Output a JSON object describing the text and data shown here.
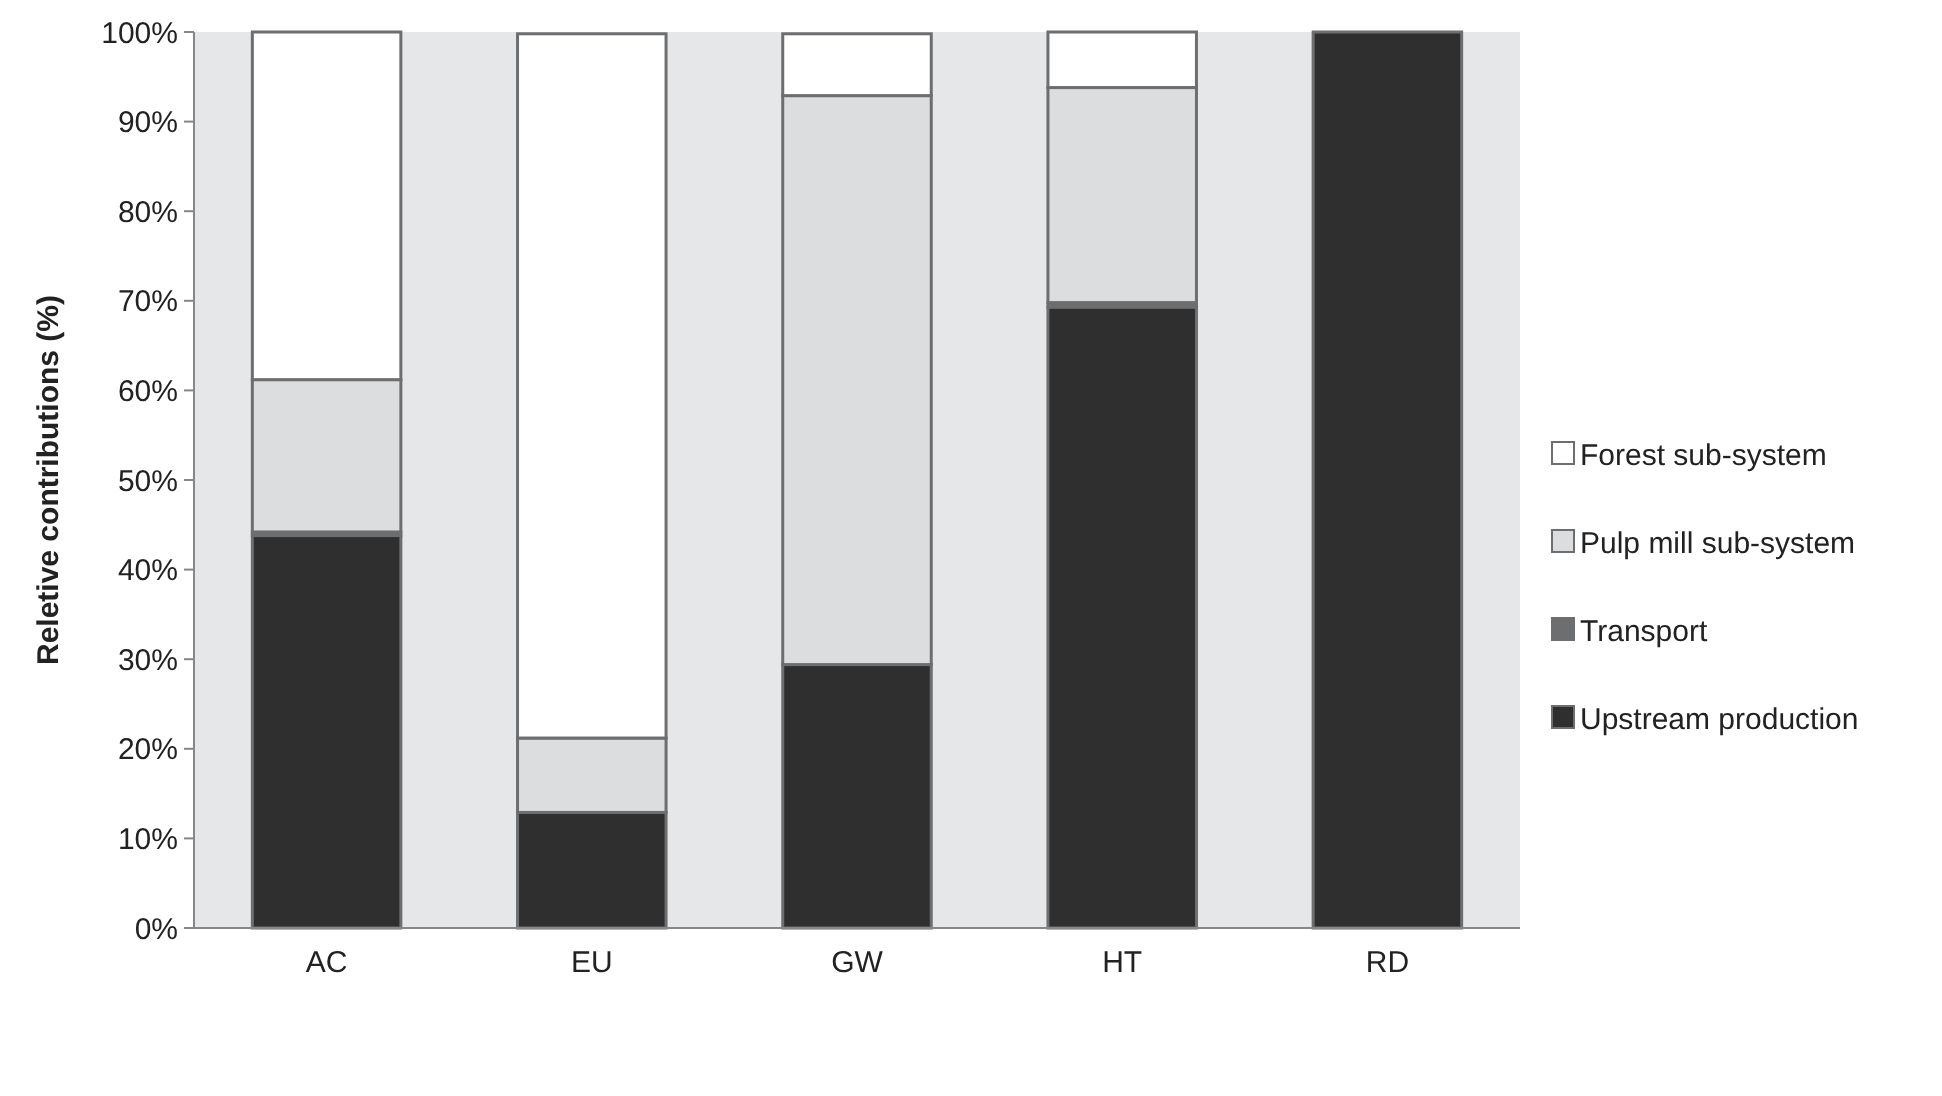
{
  "chart_data": {
    "type": "bar",
    "stacked": true,
    "ylabel": "Reletive contributions (%)",
    "categories": [
      "AC",
      "EU",
      "GW",
      "HT",
      "RD"
    ],
    "series": [
      {
        "name": "Upstream production",
        "color": "#302f30",
        "values": [
          43.8,
          12.9,
          29.4,
          69.3,
          100
        ]
      },
      {
        "name": "Transport",
        "color": "#6d6e70",
        "values": [
          0.4,
          null,
          null,
          0.5,
          0
        ]
      },
      {
        "name": "Pulp mill sub-system",
        "color": "#dcdddf",
        "values": [
          17.0,
          8.3,
          63.5,
          24.0,
          0
        ]
      },
      {
        "name": "Forest sub-system",
        "color": "#ffffff",
        "values": [
          38.8,
          78.6,
          6.9,
          6.2,
          0
        ]
      }
    ],
    "ylim": [
      0,
      100
    ],
    "yticks": [
      {
        "value": 0,
        "label": "0%"
      },
      {
        "value": 10,
        "label": "10%"
      },
      {
        "value": 20,
        "label": "20%"
      },
      {
        "value": 30,
        "label": "30%"
      },
      {
        "value": 40,
        "label": "40%"
      },
      {
        "value": 50,
        "label": "50%"
      },
      {
        "value": 60,
        "label": "60%"
      },
      {
        "value": 70,
        "label": "70%"
      },
      {
        "value": 80,
        "label": "80%"
      },
      {
        "value": 90,
        "label": "90%"
      },
      {
        "value": 100,
        "label": "100%"
      }
    ],
    "grid": false,
    "legend": "right"
  }
}
